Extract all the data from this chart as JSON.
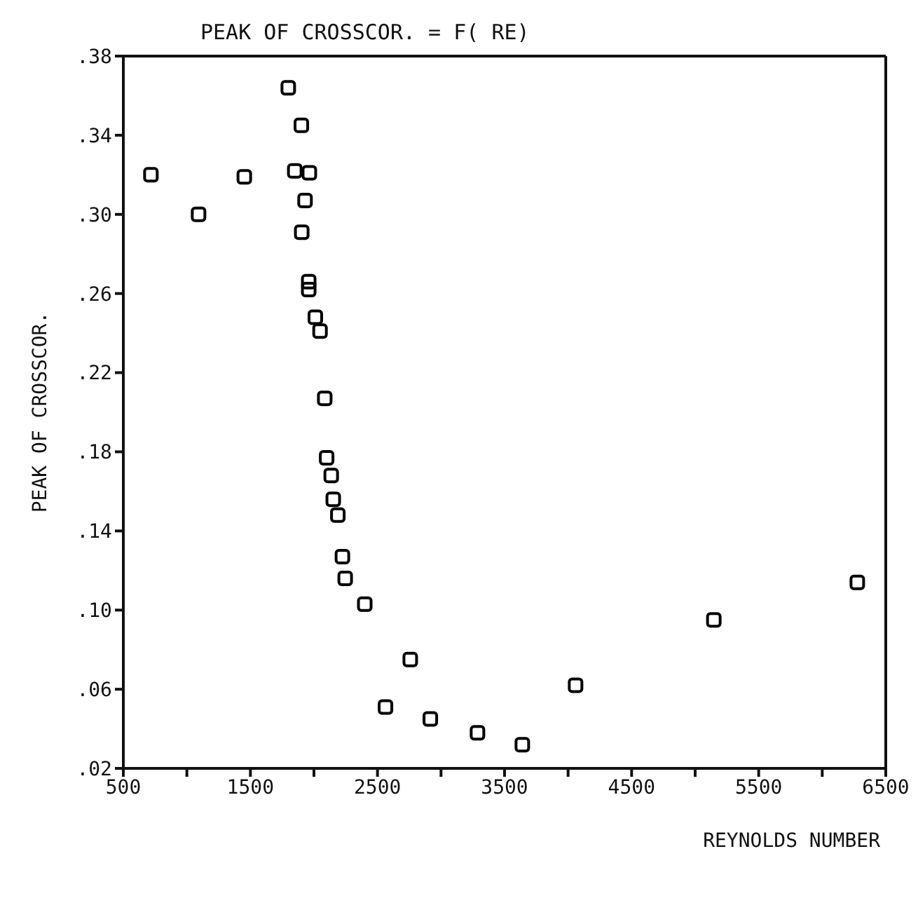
{
  "chart_data": {
    "type": "scatter",
    "title": "PEAK OF CROSSCOR. = F( RE)",
    "xlabel": "REYNOLDS NUMBER",
    "ylabel": "PEAK OF CROSSCOR.",
    "x": [
      717,
      1092,
      1452,
      1798,
      1901,
      1849,
      1964,
      1930,
      1904,
      1959,
      1959,
      2011,
      2048,
      2085,
      2100,
      2136,
      2152,
      2188,
      2224,
      2246,
      2400,
      2758,
      2563,
      2916,
      3287,
      3640,
      4059,
      5147,
      6276
    ],
    "series": [
      {
        "color": "#000000",
        "values": [
          0.32,
          0.3,
          0.319,
          0.364,
          0.345,
          0.322,
          0.321,
          0.307,
          0.291,
          0.266,
          0.262,
          0.248,
          0.241,
          0.207,
          0.177,
          0.168,
          0.156,
          0.148,
          0.127,
          0.116,
          0.103,
          0.075,
          0.051,
          0.045,
          0.038,
          0.032,
          0.062,
          0.095,
          0.114
        ]
      }
    ],
    "xlim": [
      500,
      6500
    ],
    "ylim": [
      0.02,
      0.38
    ],
    "xticks": [
      500,
      {
        "value": 1000,
        "label": null
      },
      1500,
      {
        "value": 2000,
        "label": null
      },
      2500,
      {
        "value": 3000,
        "label": null
      },
      3500,
      {
        "value": 4000,
        "label": null
      },
      4500,
      {
        "value": 5000,
        "label": null
      },
      5500,
      {
        "value": 6000,
        "label": null
      },
      6500
    ],
    "yticks": [
      {
        "value": 0.02,
        "label": ".02"
      },
      {
        "value": 0.06,
        "label": ".06"
      },
      {
        "value": 0.1,
        "label": ".10"
      },
      {
        "value": 0.14,
        "label": ".14"
      },
      {
        "value": 0.18,
        "label": ".18"
      },
      {
        "value": 0.22,
        "label": ".22"
      },
      {
        "value": 0.26,
        "label": ".26"
      },
      {
        "value": 0.3,
        "label": ".30"
      },
      {
        "value": 0.34,
        "label": ".34"
      },
      {
        "value": 0.38,
        "label": ".38"
      }
    ],
    "marker": "square",
    "grid": false,
    "legend": false
  }
}
